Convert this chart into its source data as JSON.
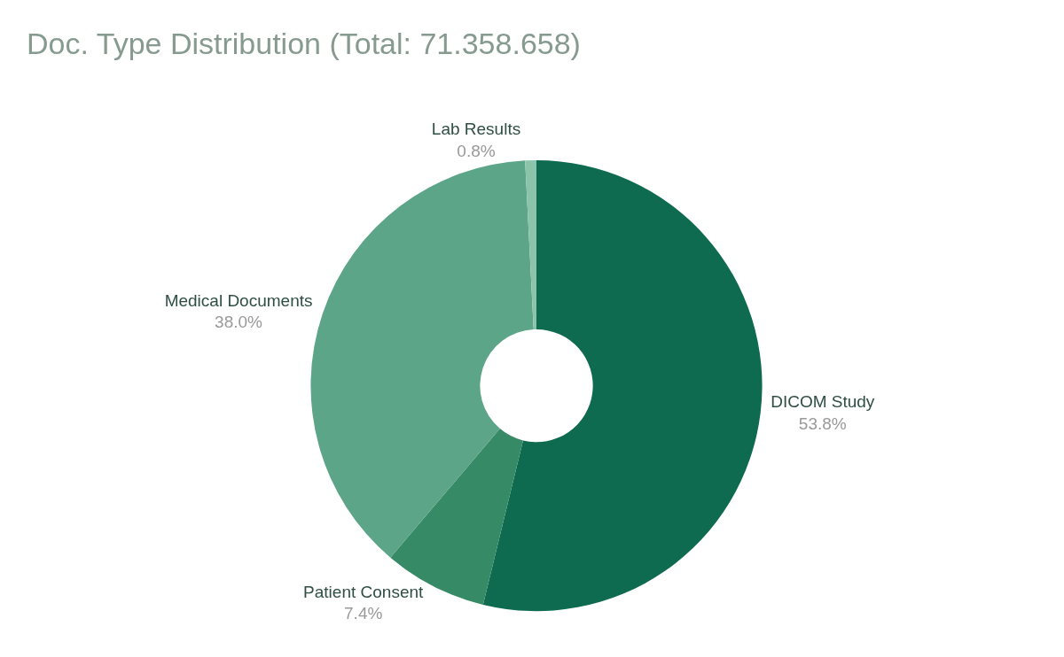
{
  "chart_data": {
    "type": "donut",
    "title": "Doc. Type Distribution (Total: 71.358.658)",
    "categories": [
      "DICOM Study",
      "Patient Consent",
      "Medical Documents",
      "Lab Results"
    ],
    "values": [
      53.8,
      7.4,
      38.0,
      0.8
    ],
    "value_labels": [
      "53.8%",
      "7.4%",
      "38.0%",
      "0.8%"
    ],
    "colors": [
      "#0f6b50",
      "#368a66",
      "#5ca588",
      "#8cc4ab"
    ],
    "legend": false
  }
}
